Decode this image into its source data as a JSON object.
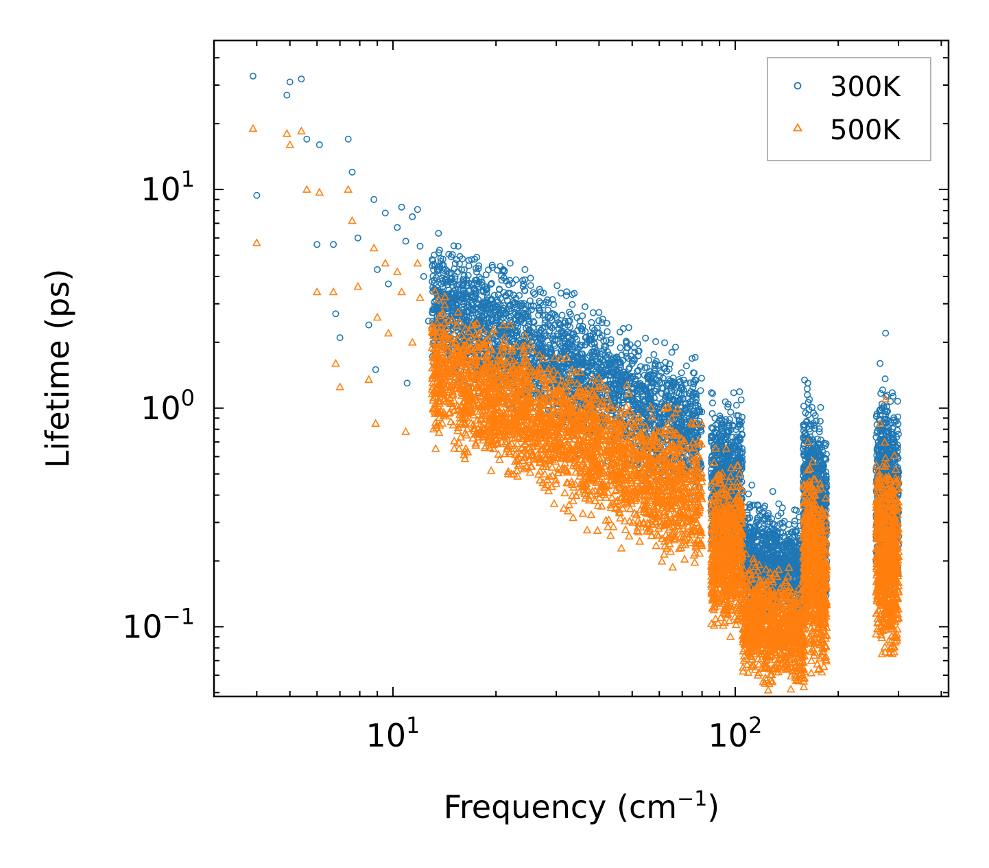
{
  "chart_data": {
    "type": "scatter",
    "title": "",
    "xlabel": "Frequency (cm",
    "xlabel_sup": "−1",
    "xlabel_end": ")",
    "ylabel": "Lifetime (ps)",
    "xscale": "log",
    "yscale": "log",
    "xlim": [
      3.0,
      420
    ],
    "ylim": [
      0.048,
      48
    ],
    "x_tick_labels": [
      {
        "value": 10,
        "base": "10",
        "exp": "1"
      },
      {
        "value": 100,
        "base": "10",
        "exp": "2"
      }
    ],
    "y_tick_labels": [
      {
        "value": 0.1,
        "base": "10",
        "exp": "−1"
      },
      {
        "value": 1,
        "base": "10",
        "exp": "0"
      },
      {
        "value": 10,
        "base": "10",
        "exp": "1"
      }
    ],
    "legend": {
      "position": "top-right",
      "entries": [
        "300K",
        "500K"
      ]
    },
    "series": [
      {
        "name": "300K",
        "marker": "circle",
        "color": "#1f77b4",
        "sample_points": [
          [
            3.9,
            33
          ],
          [
            4.0,
            9.4
          ],
          [
            4.9,
            27
          ],
          [
            5.0,
            31
          ],
          [
            5.4,
            32
          ],
          [
            5.6,
            17
          ],
          [
            6.1,
            16
          ],
          [
            6.0,
            5.6
          ],
          [
            6.7,
            5.6
          ],
          [
            6.8,
            2.7
          ],
          [
            7.0,
            2.1
          ],
          [
            7.4,
            17
          ],
          [
            7.6,
            12
          ],
          [
            7.9,
            6.0
          ],
          [
            8.5,
            2.4
          ],
          [
            8.8,
            9.0
          ],
          [
            8.9,
            1.5
          ],
          [
            9.0,
            4.3
          ],
          [
            9.5,
            7.8
          ],
          [
            9.7,
            3.7
          ],
          [
            10.3,
            6.7
          ],
          [
            10.6,
            8.3
          ],
          [
            10.9,
            5.8
          ],
          [
            11.0,
            1.3
          ],
          [
            11.4,
            7.5
          ],
          [
            11.8,
            8.1
          ],
          [
            12.0,
            5.5
          ],
          [
            12.3,
            4.0
          ],
          [
            12.7,
            2.5
          ],
          [
            13.5,
            3.2
          ],
          [
            14.0,
            4.8
          ],
          [
            15.5,
            3.5
          ],
          [
            17.0,
            3.2
          ],
          [
            19.0,
            3.0
          ],
          [
            21.0,
            4.3
          ],
          [
            22.0,
            4.6
          ],
          [
            24.0,
            3.6
          ],
          [
            27.0,
            3.4
          ],
          [
            30.0,
            2.6
          ],
          [
            33.0,
            2.2
          ],
          [
            37.0,
            2.0
          ],
          [
            42.0,
            1.7
          ],
          [
            50.0,
            1.6
          ],
          [
            58.0,
            1.2
          ],
          [
            66.0,
            1.1
          ],
          [
            70.0,
            1.25
          ],
          [
            78.0,
            0.85
          ],
          [
            88.0,
            0.55
          ],
          [
            95.0,
            0.62
          ],
          [
            103.0,
            0.72
          ],
          [
            112.0,
            0.25
          ],
          [
            125.0,
            0.33
          ],
          [
            140.0,
            0.22
          ],
          [
            155.0,
            0.18
          ],
          [
            163.0,
            1.3
          ],
          [
            175.0,
            0.45
          ],
          [
            185.0,
            0.2
          ],
          [
            265.0,
            1.6
          ],
          [
            275.0,
            2.2
          ],
          [
            290.0,
            0.7
          ],
          [
            300.0,
            0.45
          ]
        ]
      },
      {
        "name": "500K",
        "marker": "triangle",
        "color": "#ff7f0e",
        "sample_points": [
          [
            3.9,
            19
          ],
          [
            4.0,
            5.7
          ],
          [
            4.9,
            18
          ],
          [
            5.0,
            16
          ],
          [
            5.4,
            18.5
          ],
          [
            5.6,
            10
          ],
          [
            6.1,
            9.7
          ],
          [
            6.0,
            3.4
          ],
          [
            6.7,
            3.4
          ],
          [
            6.8,
            1.6
          ],
          [
            7.0,
            1.25
          ],
          [
            7.4,
            10
          ],
          [
            7.6,
            7.2
          ],
          [
            7.9,
            3.6
          ],
          [
            8.5,
            1.35
          ],
          [
            8.8,
            5.4
          ],
          [
            8.9,
            0.85
          ],
          [
            9.0,
            2.6
          ],
          [
            9.5,
            4.6
          ],
          [
            9.7,
            2.2
          ],
          [
            10.3,
            4.2
          ],
          [
            10.6,
            3.4
          ],
          [
            10.9,
            0.78
          ],
          [
            11.4,
            2.0
          ],
          [
            11.8,
            4.6
          ],
          [
            12.0,
            3.2
          ],
          [
            13.5,
            1.9
          ],
          [
            14.0,
            2.7
          ],
          [
            15.5,
            1.6
          ],
          [
            17.0,
            1.4
          ],
          [
            19.0,
            1.3
          ],
          [
            21.0,
            2.4
          ],
          [
            22.0,
            2.4
          ],
          [
            24.0,
            1.8
          ],
          [
            27.0,
            1.5
          ],
          [
            30.0,
            1.2
          ],
          [
            33.0,
            0.9
          ],
          [
            37.0,
            0.85
          ],
          [
            42.0,
            0.8
          ],
          [
            50.0,
            0.75
          ],
          [
            58.0,
            0.55
          ],
          [
            66.0,
            0.5
          ],
          [
            78.0,
            0.4
          ],
          [
            88.0,
            0.28
          ],
          [
            95.0,
            0.3
          ],
          [
            103.0,
            0.38
          ],
          [
            112.0,
            0.1
          ],
          [
            125.0,
            0.15
          ],
          [
            140.0,
            0.11
          ],
          [
            155.0,
            0.085
          ],
          [
            163.0,
            0.7
          ],
          [
            175.0,
            0.25
          ],
          [
            185.0,
            0.13
          ],
          [
            265.0,
            0.85
          ],
          [
            275.0,
            1.1
          ],
          [
            290.0,
            0.35
          ],
          [
            300.0,
            0.25
          ]
        ]
      }
    ]
  }
}
